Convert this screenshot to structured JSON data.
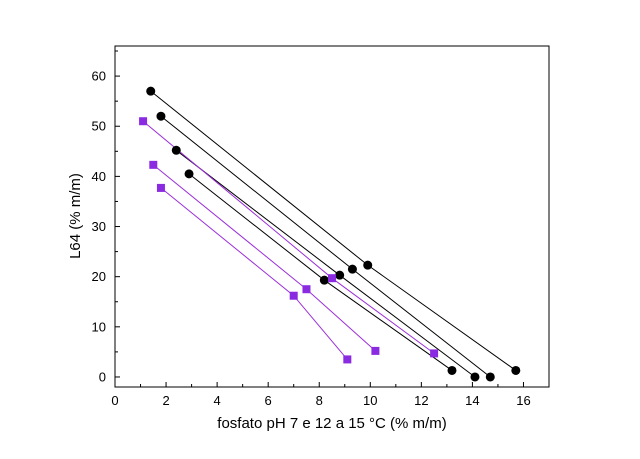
{
  "chart_data": {
    "type": "scatter",
    "xlabel": "fosfato pH 7 e 12 a 15 °C (% m/m)",
    "ylabel": "L64 (% m/m)",
    "xlim": [
      0,
      17
    ],
    "ylim": [
      -2,
      66
    ],
    "x_ticks": [
      0,
      2,
      4,
      6,
      8,
      10,
      12,
      14,
      16
    ],
    "y_ticks": [
      0,
      10,
      20,
      30,
      40,
      50,
      60
    ],
    "grid": false,
    "legend": "none",
    "series": [
      {
        "marker": "circle",
        "color": "#000000",
        "line_color": "#000000",
        "points": [
          [
            1.4,
            57.0
          ],
          [
            9.9,
            22.3
          ],
          [
            15.7,
            1.3
          ]
        ]
      },
      {
        "marker": "circle",
        "color": "#000000",
        "line_color": "#000000",
        "points": [
          [
            1.8,
            52.0
          ],
          [
            9.3,
            21.5
          ],
          [
            14.7,
            0.0
          ]
        ]
      },
      {
        "marker": "circle",
        "color": "#000000",
        "line_color": "#000000",
        "points": [
          [
            2.4,
            45.2
          ],
          [
            8.8,
            20.3
          ],
          [
            14.1,
            0.0
          ]
        ]
      },
      {
        "marker": "circle",
        "color": "#000000",
        "line_color": "#000000",
        "points": [
          [
            2.9,
            40.5
          ],
          [
            8.2,
            19.3
          ],
          [
            13.2,
            1.3
          ]
        ]
      },
      {
        "marker": "square",
        "color": "#8a2be2",
        "line_color": "#9b30d9",
        "points": [
          [
            1.1,
            51.0
          ],
          [
            8.5,
            19.7
          ],
          [
            12.5,
            4.7
          ]
        ]
      },
      {
        "marker": "square",
        "color": "#8a2be2",
        "line_color": "#9b30d9",
        "points": [
          [
            1.5,
            42.3
          ],
          [
            7.5,
            17.5
          ],
          [
            10.2,
            5.2
          ]
        ]
      },
      {
        "marker": "square",
        "color": "#8a2be2",
        "line_color": "#9b30d9",
        "points": [
          [
            1.8,
            37.7
          ],
          [
            7.0,
            16.2
          ],
          [
            9.1,
            3.5
          ]
        ]
      }
    ]
  }
}
